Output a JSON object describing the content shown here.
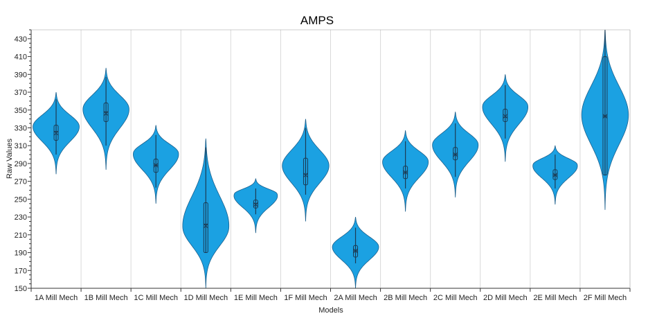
{
  "chart_data": {
    "type": "violin",
    "title": "AMPS",
    "xlabel": "Models",
    "ylabel": "Raw Values",
    "ylim": [
      150,
      440
    ],
    "yticks": [
      150,
      170,
      190,
      210,
      230,
      250,
      270,
      290,
      310,
      330,
      350,
      370,
      390,
      410,
      430
    ],
    "grid": "vertical",
    "color": "#1ba1e2",
    "stroke_color": "#1b5f8c",
    "categories": [
      "1A Mill Mech",
      "1B Mill Mech",
      "1C Mill Mech",
      "1D Mill Mech",
      "1E Mill Mech",
      "1F Mill Mech",
      "2A Mill Mech",
      "2B Mill Mech",
      "2C Mill Mech",
      "2D Mill Mech",
      "2E Mill Mech",
      "2F Mill Mech"
    ],
    "violins": [
      {
        "min": 278,
        "max": 370,
        "peak": 332,
        "spread": 0.42,
        "whisker_low": 300,
        "whisker_high": 362,
        "q1": 316,
        "median": 326,
        "q3": 333,
        "mean": 324
      },
      {
        "min": 283,
        "max": 397,
        "peak": 352,
        "spread": 0.5,
        "whisker_low": 310,
        "whisker_high": 387,
        "q1": 337,
        "median": 348,
        "q3": 358,
        "mean": 346
      },
      {
        "min": 245,
        "max": 333,
        "peak": 302,
        "spread": 0.45,
        "whisker_low": 263,
        "whisker_high": 322,
        "q1": 280,
        "median": 288,
        "q3": 295,
        "mean": 288
      },
      {
        "min": 150,
        "max": 318,
        "peak": 218,
        "spread": 0.42,
        "whisker_low": 190,
        "whisker_high": 308,
        "q1": 190,
        "median": 222,
        "q3": 246,
        "mean": 220
      },
      {
        "min": 212,
        "max": 273,
        "peak": 256,
        "spread": 0.45,
        "whisker_low": 233,
        "whisker_high": 262,
        "q1": 240,
        "median": 245,
        "q3": 249,
        "mean": 244
      },
      {
        "min": 225,
        "max": 340,
        "peak": 288,
        "spread": 0.45,
        "whisker_low": 255,
        "whisker_high": 330,
        "q1": 266,
        "median": 278,
        "q3": 296,
        "mean": 277
      },
      {
        "min": 150,
        "max": 230,
        "peak": 197,
        "spread": 0.45,
        "whisker_low": 178,
        "whisker_high": 218,
        "q1": 185,
        "median": 192,
        "q3": 198,
        "mean": 192
      },
      {
        "min": 236,
        "max": 327,
        "peak": 293,
        "spread": 0.45,
        "whisker_low": 262,
        "whisker_high": 315,
        "q1": 273,
        "median": 280,
        "q3": 287,
        "mean": 280
      },
      {
        "min": 252,
        "max": 348,
        "peak": 312,
        "spread": 0.45,
        "whisker_low": 275,
        "whisker_high": 335,
        "q1": 294,
        "median": 300,
        "q3": 308,
        "mean": 300
      },
      {
        "min": 292,
        "max": 390,
        "peak": 355,
        "spread": 0.45,
        "whisker_low": 318,
        "whisker_high": 378,
        "q1": 337,
        "median": 342,
        "q3": 351,
        "mean": 343
      },
      {
        "min": 244,
        "max": 310,
        "peak": 289,
        "spread": 0.45,
        "whisker_low": 262,
        "whisker_high": 300,
        "q1": 272,
        "median": 277,
        "q3": 283,
        "mean": 277
      },
      {
        "min": 238,
        "max": 440,
        "peak": 345,
        "spread": 0.85,
        "whisker_low": 277,
        "whisker_high": 440,
        "q1": 277,
        "median": 343,
        "q3": 410,
        "mean": 343
      }
    ]
  }
}
